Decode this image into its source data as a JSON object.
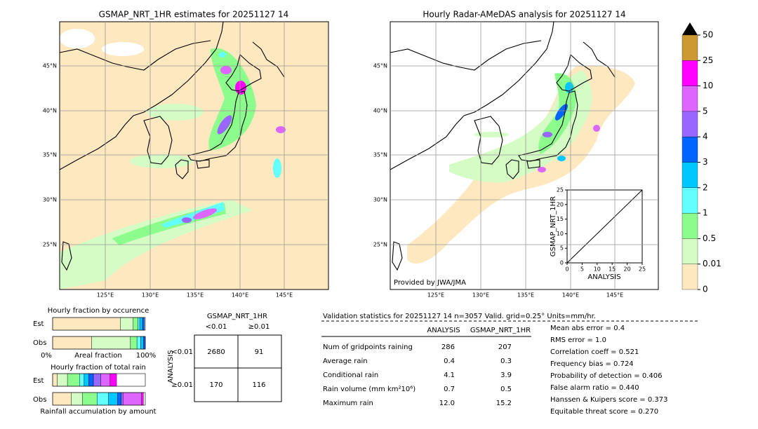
{
  "left_map": {
    "title": "GSMAP_NRT_1HR estimates for 20251127 14"
  },
  "right_map": {
    "title": "Hourly Radar-AMeDAS analysis for 20251127 14",
    "credit": "Provided by JWA/JMA"
  },
  "lat_labels": [
    "45°N",
    "40°N",
    "35°N",
    "30°N",
    "25°N"
  ],
  "lon_labels": [
    "125°E",
    "130°E",
    "135°E",
    "140°E",
    "145°E"
  ],
  "colorbar": {
    "levels": [
      0,
      0.01,
      0.5,
      1,
      2,
      3,
      4,
      5,
      10,
      25,
      50
    ],
    "colors": [
      "#fee8c0",
      "#d6fcc6",
      "#8cfc8c",
      "#63ffff",
      "#00c8ff",
      "#0064ff",
      "#9966ff",
      "#dd66ff",
      "#ff00ff",
      "#cc9933"
    ],
    "over_color": "#000000"
  },
  "scatter": {
    "xlabel": "ANALYSIS",
    "ylabel": "GSMAP_NRT_1HR",
    "lim": [
      0,
      25
    ],
    "ticks": [
      0,
      5,
      10,
      15,
      20,
      25
    ]
  },
  "fraction_occurrence": {
    "title": "Hourly fraction by occurence",
    "rows": [
      "Est",
      "Obs"
    ],
    "axis_left": "0%",
    "axis_label": "Areal fraction",
    "axis_right": "100%",
    "est": [
      0.73,
      0.14,
      0.05,
      0.02,
      0.03,
      0.02
    ],
    "obs": [
      0.42,
      0.42,
      0.07,
      0.04,
      0.03,
      0.02
    ]
  },
  "fraction_total": {
    "title": "Hourly fraction of total rain",
    "rows": [
      "Est",
      "Obs"
    ],
    "xlabel": "Rainfall accumulation by amount",
    "est": [
      0.05,
      0.11,
      0.13,
      0.05,
      0.05,
      0.05,
      0.08,
      0.1,
      0.07
    ],
    "obs": [
      0.2,
      0.12,
      0.16,
      0.12,
      0.1,
      0.04,
      0.02,
      0.2,
      0.02
    ]
  },
  "contingency": {
    "title": "GSMAP_NRT_1HR",
    "col_headers": [
      "<0.01",
      "≥0.01"
    ],
    "row_label": "ANALYSIS",
    "row_headers": [
      "<0.01",
      "≥0.01"
    ],
    "cells": [
      [
        2680,
        91
      ],
      [
        170,
        116
      ]
    ]
  },
  "validation": {
    "title": "Validation statistics for 20251127 14  n=3057 Valid. grid=0.25° Units=mm/hr.",
    "col_headers": [
      "ANALYSIS",
      "GSMAP_NRT_1HR"
    ],
    "rows": [
      {
        "label": "Num of gridpoints raining",
        "values": [
          286,
          207
        ]
      },
      {
        "label": "Average rain",
        "values": [
          0.4,
          0.3
        ]
      },
      {
        "label": "Conditional rain",
        "values": [
          4.1,
          3.9
        ]
      },
      {
        "label": "Rain volume (mm km²10⁶)",
        "values": [
          0.7,
          0.5
        ]
      },
      {
        "label": "Maximum rain",
        "values": [
          "12.0",
          15.2
        ]
      }
    ],
    "scores": [
      "Mean abs error =    0.4",
      "RMS error =    1.0",
      "Correlation coeff =  0.521",
      "Frequency bias =  0.724",
      "Probability of detection =  0.406",
      "False alarm ratio =  0.440",
      "Hanssen & Kuipers score =  0.373",
      "Equitable threat score =  0.270"
    ]
  }
}
